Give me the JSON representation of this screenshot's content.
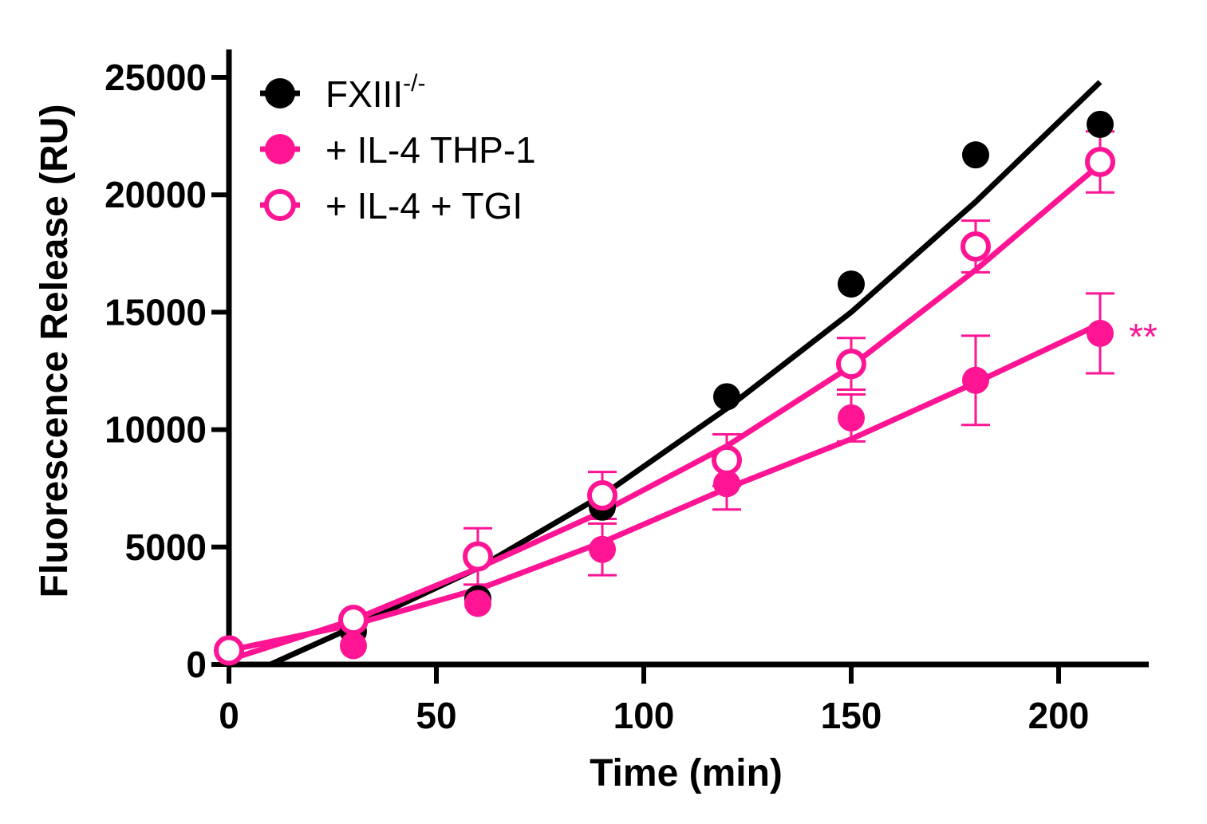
{
  "chart_data": {
    "type": "scatter",
    "title": "",
    "xlabel": "Time (min)",
    "ylabel": "Fluorescence Release (RU)",
    "xlim": [
      0,
      220
    ],
    "ylim": [
      0,
      25000
    ],
    "xticks": [
      0,
      50,
      100,
      150,
      200
    ],
    "yticks": [
      0,
      5000,
      10000,
      15000,
      20000,
      25000
    ],
    "xtick_labels": [
      "0",
      "50",
      "100",
      "150",
      "200"
    ],
    "ytick_labels": [
      "0",
      "5000",
      "10000",
      "15000",
      "20000",
      "25000"
    ],
    "grid": false,
    "legend_position": "top-left",
    "x": [
      0,
      30,
      60,
      90,
      120,
      150,
      180,
      210
    ],
    "series": [
      {
        "name": "FXIII",
        "name_sup": "-/-",
        "color": "#000000",
        "marker": "filled-circle",
        "values": [
          600,
          1400,
          2800,
          6700,
          11400,
          16200,
          21700,
          23000
        ],
        "errors": [
          0,
          0,
          0,
          0,
          0,
          0,
          0,
          0
        ],
        "fit_x": [
          10,
          30,
          60,
          90,
          120,
          150,
          180,
          210
        ],
        "fit_y": [
          0,
          1600,
          4100,
          7200,
          10900,
          15000,
          19700,
          24800
        ]
      },
      {
        "name": "+ IL-4 THP-1",
        "color": "#ff1493",
        "marker": "filled-circle",
        "values": [
          600,
          800,
          2600,
          4900,
          7700,
          10500,
          12100,
          14100
        ],
        "errors": [
          0,
          0,
          0,
          1100,
          1100,
          1000,
          1900,
          1700
        ],
        "fit_x": [
          0,
          30,
          60,
          90,
          120,
          150,
          180,
          210
        ],
        "fit_y": [
          600,
          1700,
          3200,
          5200,
          7500,
          9600,
          12000,
          14500
        ]
      },
      {
        "name": "+ IL-4 + TGI",
        "color": "#ff1493",
        "marker": "open-circle",
        "values": [
          600,
          1900,
          4600,
          7200,
          8700,
          12800,
          17800,
          21400
        ],
        "errors": [
          0,
          0,
          1200,
          1000,
          1100,
          1100,
          1100,
          1300
        ],
        "fit_x": [
          0,
          30,
          60,
          90,
          120,
          150,
          180,
          210
        ],
        "fit_y": [
          200,
          1900,
          4100,
          6500,
          9300,
          12700,
          16800,
          21300
        ]
      }
    ],
    "annotations": [
      {
        "text": "**",
        "x": 210,
        "y": 14100,
        "color": "#ff1493"
      }
    ]
  }
}
